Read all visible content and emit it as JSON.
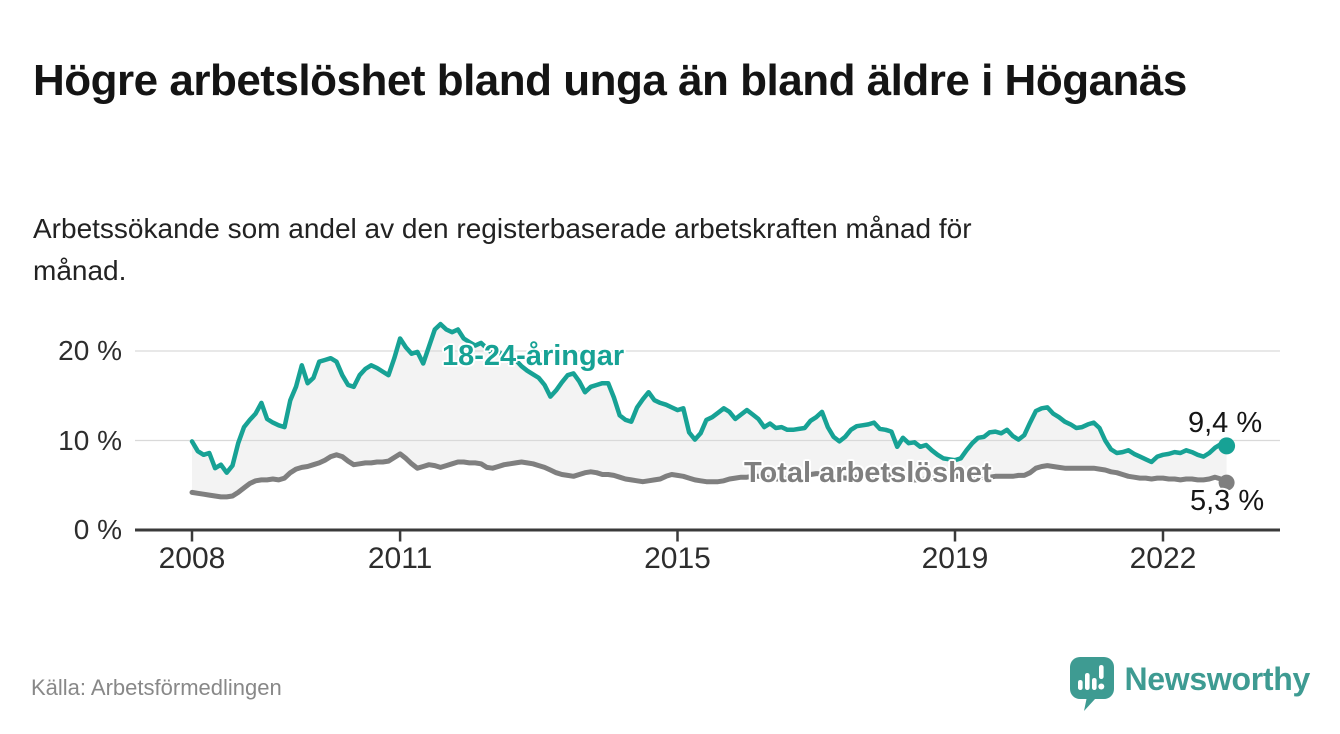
{
  "header": {
    "title": "Högre arbetslöshet bland unga än bland äldre i Höganäs",
    "subtitle": "Arbetssökande som andel av den registerbaserade arbetskraften månad för månad."
  },
  "footer": {
    "source": "Källa: Arbetsförmedlingen",
    "brand": "Newsworthy"
  },
  "colors": {
    "youth": "#17A295",
    "total": "#7F7F7F",
    "band": "#F3F3F3",
    "grid": "#D9D9D9",
    "axis": "#3A3A3A",
    "brand": "#3E9B92",
    "value_label": "#161616"
  },
  "chart_data": {
    "type": "line",
    "title": "Högre arbetslöshet bland unga än bland äldre i Höganäs",
    "subtitle": "Arbetssökande som andel av den registerbaserade arbetskraften månad för månad.",
    "x_unit": "month",
    "x_start_year": 2008,
    "x_end_year": 2022,
    "x_ticks": [
      2008,
      2011,
      2015,
      2019,
      2022
    ],
    "y_ticks": [
      {
        "value": 0,
        "label": "0 %"
      },
      {
        "value": 10,
        "label": "10 %"
      },
      {
        "value": 20,
        "label": "20 %"
      }
    ],
    "ylim": [
      0,
      24
    ],
    "grid": true,
    "legend_position": "inline",
    "series": [
      {
        "name": "18-24-åringar",
        "color": "#17A295",
        "end_label": "9,4 %",
        "end_value": 9.4,
        "values": [
          9.9,
          8.8,
          8.4,
          8.6,
          6.9,
          7.3,
          6.4,
          7.2,
          9.7,
          11.5,
          12.3,
          13.0,
          14.2,
          12.4,
          12.0,
          11.7,
          11.5,
          14.5,
          16.0,
          18.4,
          16.4,
          17.0,
          18.8,
          19.0,
          19.2,
          18.8,
          17.3,
          16.2,
          16.0,
          17.3,
          18.0,
          18.4,
          18.1,
          17.7,
          17.3,
          19.2,
          21.4,
          20.4,
          19.7,
          19.9,
          18.6,
          20.5,
          22.4,
          23.0,
          22.4,
          22.1,
          22.4,
          21.4,
          21.0,
          20.6,
          20.9,
          20.3,
          19.7,
          20.0,
          19.3,
          18.7,
          19.0,
          18.3,
          17.8,
          17.4,
          17.0,
          16.2,
          14.9,
          15.6,
          16.5,
          17.3,
          17.5,
          16.6,
          15.4,
          16.0,
          16.2,
          16.4,
          16.4,
          14.8,
          12.8,
          12.3,
          12.1,
          13.7,
          14.6,
          15.4,
          14.5,
          14.2,
          14.0,
          13.7,
          13.4,
          13.6,
          10.9,
          10.1,
          10.8,
          12.3,
          12.6,
          13.1,
          13.6,
          13.2,
          12.4,
          12.9,
          13.4,
          12.9,
          12.4,
          11.5,
          11.9,
          11.4,
          11.5,
          11.2,
          11.2,
          11.3,
          11.4,
          12.2,
          12.6,
          13.2,
          11.5,
          10.4,
          9.9,
          10.4,
          11.2,
          11.6,
          11.7,
          11.8,
          12.0,
          11.3,
          11.2,
          11.0,
          9.3,
          10.3,
          9.7,
          9.8,
          9.3,
          9.5,
          8.9,
          8.4,
          8.0,
          7.9,
          7.8,
          8.0,
          8.9,
          9.7,
          10.3,
          10.4,
          10.9,
          11.0,
          10.8,
          11.2,
          10.5,
          10.1,
          10.6,
          12.0,
          13.3,
          13.6,
          13.7,
          13.0,
          12.6,
          12.1,
          11.8,
          11.4,
          11.5,
          11.8,
          12.0,
          11.4,
          10.0,
          9.0,
          8.6,
          8.7,
          8.9,
          8.5,
          8.2,
          7.9,
          7.6,
          8.2,
          8.4,
          8.5,
          8.7,
          8.6,
          8.9,
          8.7,
          8.4,
          8.2,
          8.6,
          9.2,
          9.6,
          9.4
        ]
      },
      {
        "name": "Total arbetslöshet",
        "color": "#7F7F7F",
        "end_label": "5,3 %",
        "end_value": 5.3,
        "values": [
          4.2,
          4.1,
          4.0,
          3.9,
          3.8,
          3.7,
          3.7,
          3.8,
          4.2,
          4.7,
          5.2,
          5.5,
          5.6,
          5.6,
          5.7,
          5.6,
          5.8,
          6.4,
          6.8,
          7.0,
          7.1,
          7.3,
          7.5,
          7.8,
          8.2,
          8.4,
          8.2,
          7.7,
          7.3,
          7.4,
          7.5,
          7.5,
          7.6,
          7.6,
          7.7,
          8.1,
          8.5,
          8.0,
          7.4,
          6.9,
          7.1,
          7.3,
          7.2,
          7.0,
          7.2,
          7.4,
          7.6,
          7.6,
          7.5,
          7.5,
          7.4,
          7.0,
          6.9,
          7.1,
          7.3,
          7.4,
          7.5,
          7.6,
          7.5,
          7.4,
          7.2,
          7.0,
          6.7,
          6.4,
          6.2,
          6.1,
          6.0,
          6.2,
          6.4,
          6.5,
          6.4,
          6.2,
          6.2,
          6.1,
          5.9,
          5.7,
          5.6,
          5.5,
          5.4,
          5.5,
          5.6,
          5.7,
          6.0,
          6.2,
          6.1,
          6.0,
          5.8,
          5.6,
          5.5,
          5.4,
          5.4,
          5.4,
          5.5,
          5.7,
          5.8,
          5.9,
          5.9,
          6.0,
          6.0,
          5.9,
          5.8,
          5.7,
          5.7,
          5.8,
          5.9,
          6.0,
          6.1,
          6.2,
          6.3,
          6.3,
          6.2,
          6.0,
          5.9,
          5.8,
          5.8,
          5.9,
          6.0,
          6.1,
          6.1,
          6.2,
          6.2,
          6.1,
          6.0,
          5.8,
          5.7,
          5.6,
          5.6,
          5.7,
          5.8,
          5.8,
          5.9,
          6.0,
          6.0,
          6.0,
          5.9,
          5.8,
          5.8,
          5.9,
          5.9,
          6.0,
          6.0,
          6.0,
          6.0,
          6.1,
          6.1,
          6.4,
          6.9,
          7.1,
          7.2,
          7.1,
          7.0,
          6.9,
          6.9,
          6.9,
          6.9,
          6.9,
          6.9,
          6.8,
          6.7,
          6.5,
          6.4,
          6.2,
          6.0,
          5.9,
          5.8,
          5.8,
          5.7,
          5.8,
          5.8,
          5.7,
          5.7,
          5.6,
          5.7,
          5.7,
          5.6,
          5.6,
          5.7,
          5.9,
          5.7,
          5.3
        ]
      }
    ]
  }
}
